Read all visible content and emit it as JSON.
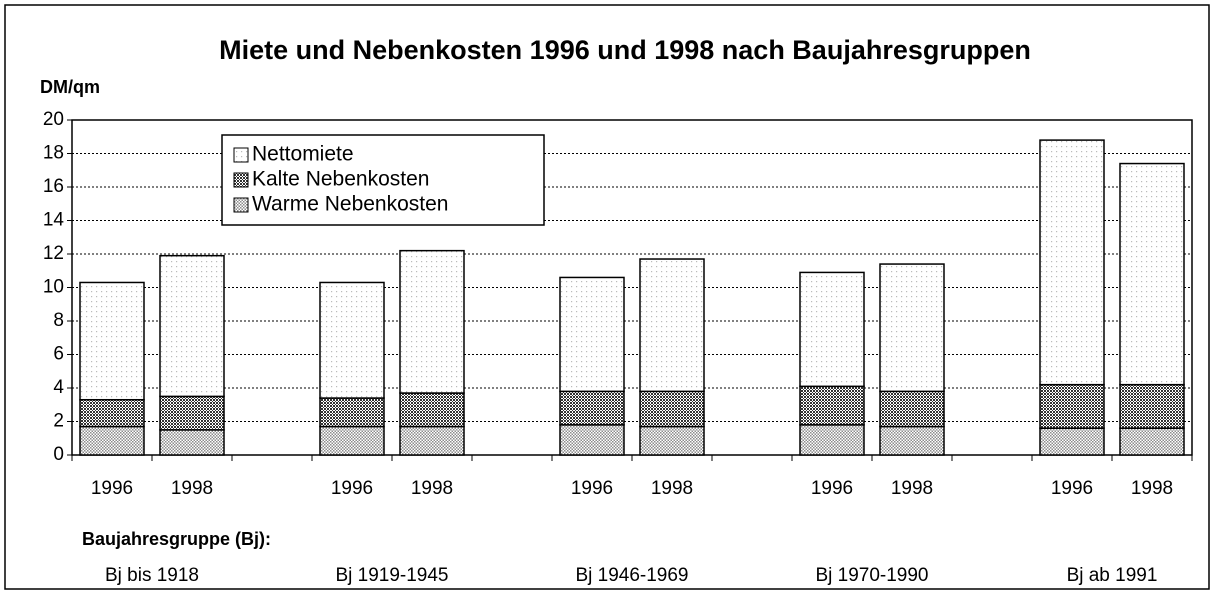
{
  "chart_data": {
    "type": "stacked_bar",
    "title": "Miete und Nebenkosten 1996 und 1998 nach Baujahresgruppen",
    "ylabel": "DM/qm",
    "xlabel": "Baujahresgruppe (Bj):",
    "categories": [
      "1996",
      "1998",
      null,
      "1996",
      "1998",
      null,
      "1996",
      "1998",
      null,
      "1996",
      "1998",
      null,
      "1996",
      "1998"
    ],
    "group_labels": [
      "Bj bis 1918",
      "Bj 1919-1945",
      "Bj 1946-1969",
      "Bj 1970-1990",
      "Bj ab 1991"
    ],
    "series": [
      {
        "name": "Warme Nebenkosten",
        "color": "#8c8c8c",
        "values": [
          1.7,
          1.5,
          null,
          1.7,
          1.7,
          null,
          1.8,
          1.7,
          null,
          1.8,
          1.7,
          null,
          1.6,
          1.6
        ]
      },
      {
        "name": "Kalte Nebenkosten",
        "color": "#333333",
        "values": [
          1.6,
          2.0,
          null,
          1.7,
          2.0,
          null,
          2.0,
          2.1,
          null,
          2.3,
          2.1,
          null,
          2.6,
          2.6
        ]
      },
      {
        "name": "Nettomiete",
        "color": "#bbbbbb",
        "values": [
          7.0,
          8.4,
          null,
          6.9,
          8.5,
          null,
          6.8,
          7.9,
          null,
          6.8,
          7.6,
          null,
          14.6,
          13.2
        ]
      }
    ],
    "legend_order": [
      2,
      1,
      0
    ],
    "ylim": [
      0,
      20
    ],
    "yticks": [
      0,
      2,
      4,
      6,
      8,
      10,
      12,
      14,
      16,
      18,
      20
    ],
    "grid": true
  }
}
